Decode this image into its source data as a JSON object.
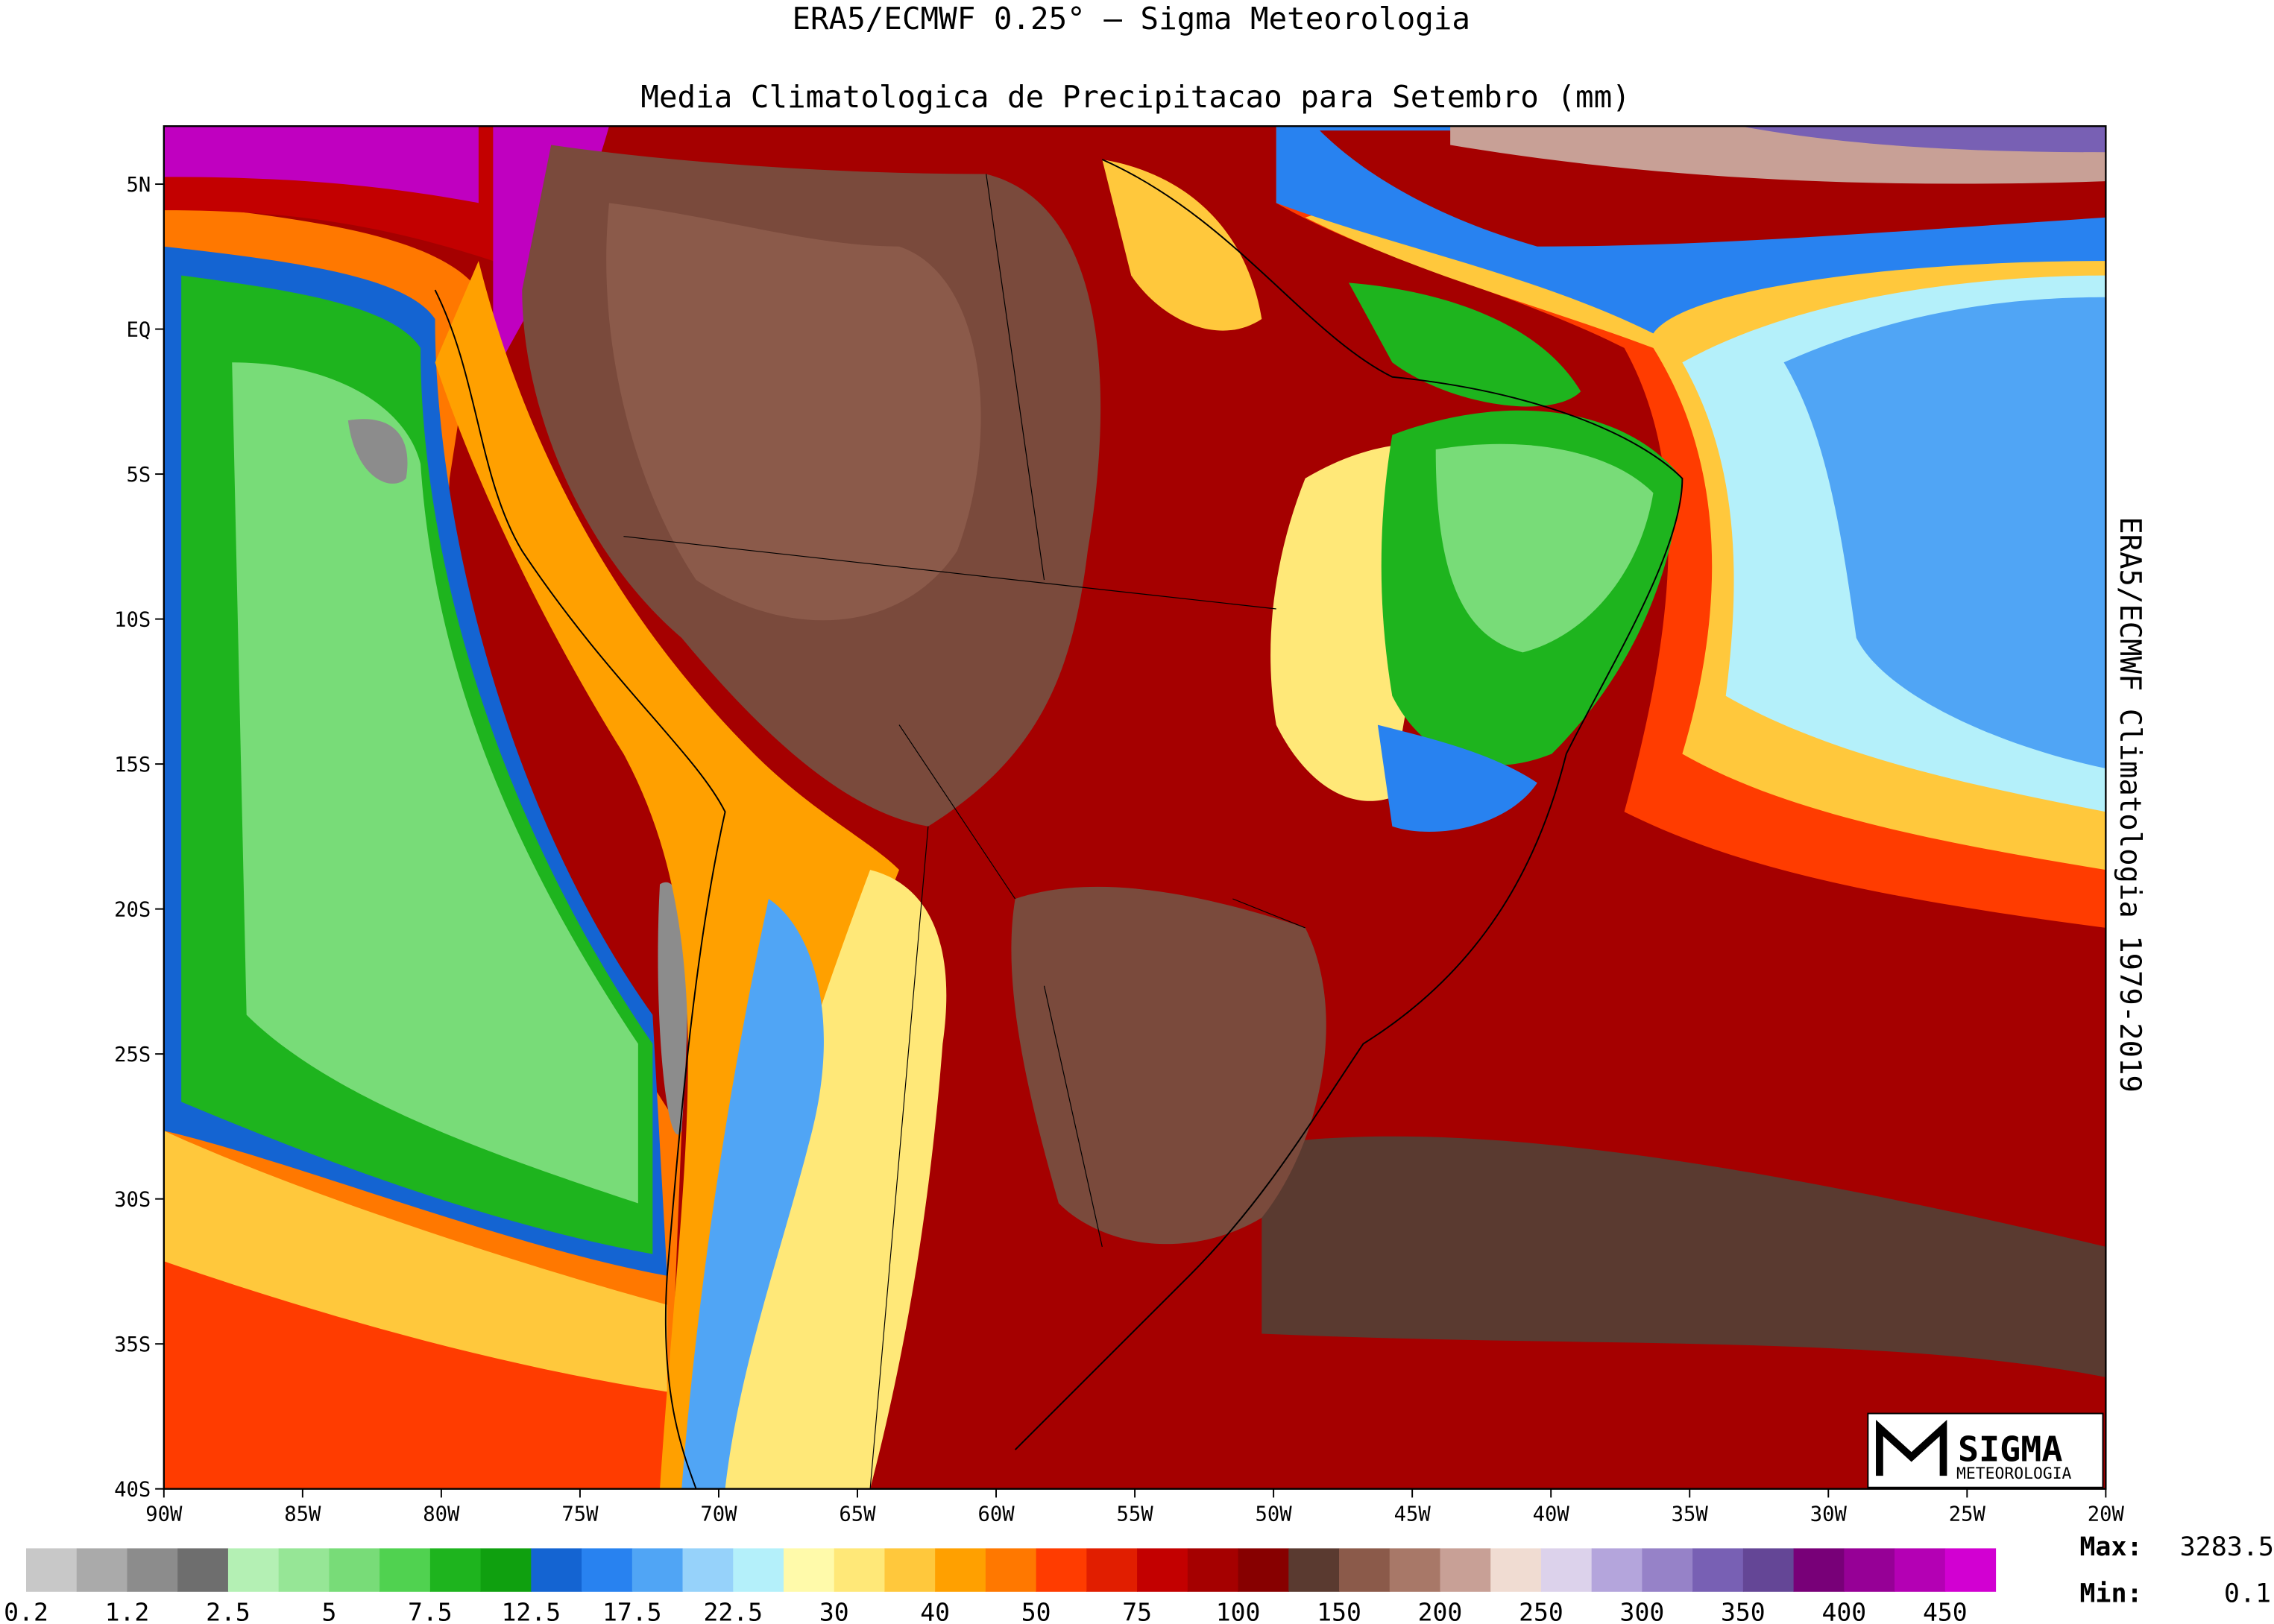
{
  "header": {
    "title": "ERA5/ECMWF 0.25° — Sigma Meteorologia",
    "subtitle": "Media Climatologica de Precipitacao para Setembro (mm)"
  },
  "side_label": "ERA5/ECMWF Climatologia 1979-2019",
  "map": {
    "xlim": [
      -90,
      -20
    ],
    "ylim": [
      -40,
      7
    ],
    "xticks": [
      {
        "value": -90,
        "label": "90W"
      },
      {
        "value": -85,
        "label": "85W"
      },
      {
        "value": -80,
        "label": "80W"
      },
      {
        "value": -75,
        "label": "75W"
      },
      {
        "value": -70,
        "label": "70W"
      },
      {
        "value": -65,
        "label": "65W"
      },
      {
        "value": -60,
        "label": "60W"
      },
      {
        "value": -55,
        "label": "55W"
      },
      {
        "value": -50,
        "label": "50W"
      },
      {
        "value": -45,
        "label": "45W"
      },
      {
        "value": -40,
        "label": "40W"
      },
      {
        "value": -35,
        "label": "35W"
      },
      {
        "value": -30,
        "label": "30W"
      },
      {
        "value": -25,
        "label": "25W"
      },
      {
        "value": -20,
        "label": "20W"
      }
    ],
    "yticks": [
      {
        "value": 5,
        "label": "5N"
      },
      {
        "value": 0,
        "label": "EQ"
      },
      {
        "value": -5,
        "label": "5S"
      },
      {
        "value": -10,
        "label": "10S"
      },
      {
        "value": -15,
        "label": "15S"
      },
      {
        "value": -20,
        "label": "20S"
      },
      {
        "value": -25,
        "label": "25S"
      },
      {
        "value": -30,
        "label": "30S"
      },
      {
        "value": -35,
        "label": "35S"
      },
      {
        "value": -40,
        "label": "40S"
      }
    ]
  },
  "colorbar": {
    "colors": [
      "#c8c8c8",
      "#aaaaaa",
      "#8c8c8c",
      "#6e6e6e",
      "#b4f0b4",
      "#96e696",
      "#78dc78",
      "#50d250",
      "#1eb41e",
      "#0fa00f",
      "#1464d2",
      "#2882f0",
      "#50a5f5",
      "#96d2fa",
      "#b4f0fa",
      "#fffaaa",
      "#ffe878",
      "#ffc83c",
      "#ffa000",
      "#ff7800",
      "#ff3c00",
      "#e11e00",
      "#c30000",
      "#a50000",
      "#870000",
      "#5a3a30",
      "#8b5a4a",
      "#a87868",
      "#c8a096",
      "#f0dcd2",
      "#dcd2eb",
      "#b4a5dc",
      "#9682c8",
      "#7860b4",
      "#644696",
      "#780078",
      "#960096",
      "#b400b4",
      "#d200d2"
    ],
    "labels": [
      0.2,
      1.2,
      2.5,
      5,
      7.5,
      12.5,
      17.5,
      22.5,
      30,
      40,
      50,
      75,
      100,
      150,
      200,
      250,
      300,
      350,
      400,
      450
    ]
  },
  "stats": {
    "max_label": "Max:",
    "max": 3283.5,
    "min_label": "Min:",
    "min": 0.1
  },
  "logo": {
    "name": "SIGMA",
    "subname": "METEOROLOGIA"
  }
}
